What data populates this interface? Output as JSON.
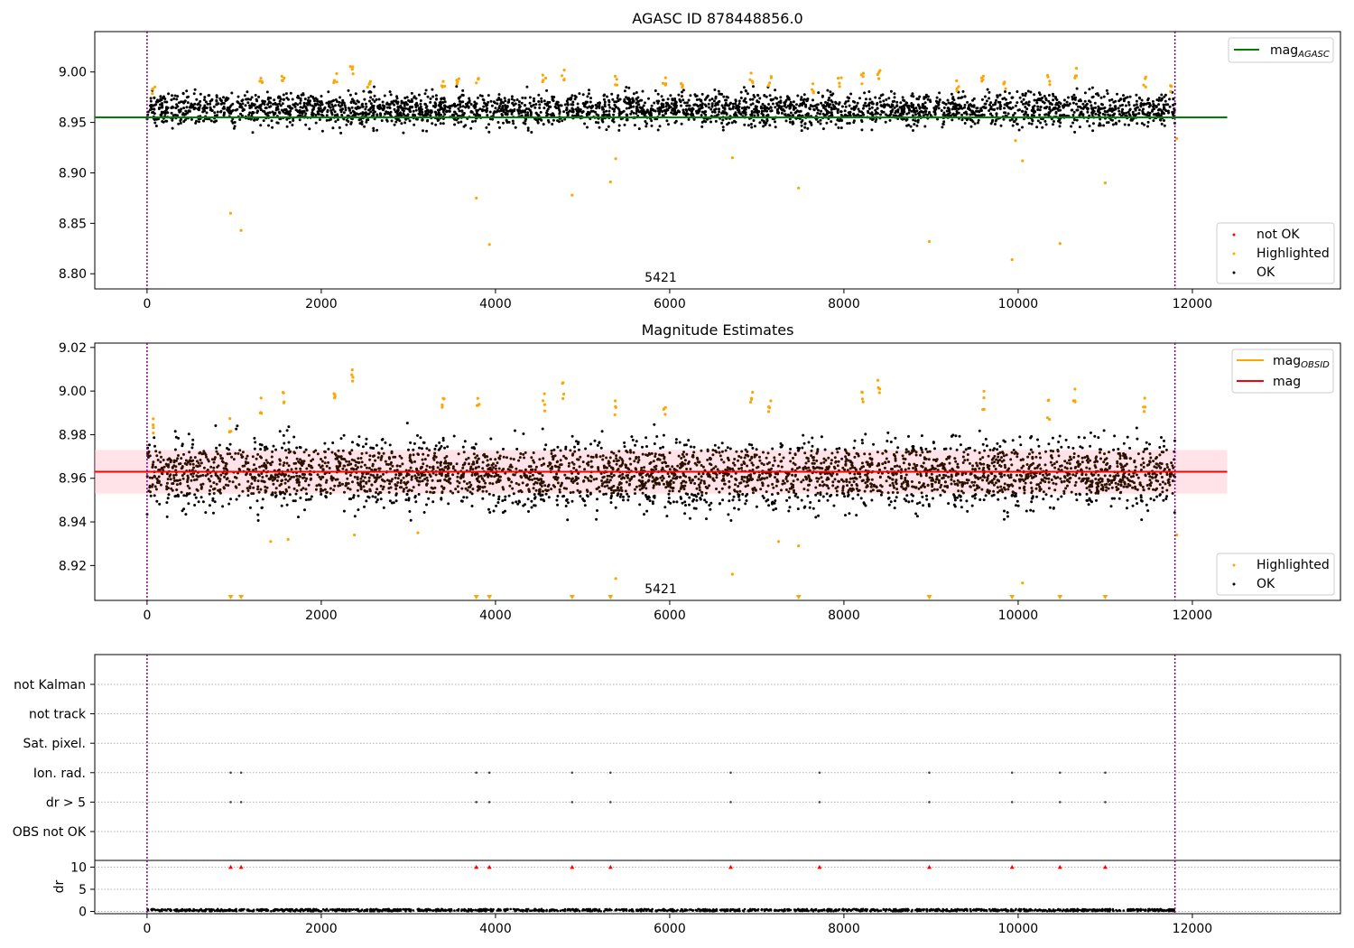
{
  "panel1": {
    "title": "AGASC ID 878448856.0",
    "center_label": "5421",
    "legend_top": [
      {
        "label": "mag",
        "sub": "AGASC",
        "color": "#008000"
      }
    ],
    "legend_bottom": [
      {
        "label": "not OK",
        "color": "#ff0000"
      },
      {
        "label": "Highlighted",
        "color": "#ffa500"
      },
      {
        "label": "OK",
        "color": "#000000"
      }
    ]
  },
  "panel2": {
    "title": "Magnitude Estimates",
    "center_label": "5421",
    "legend_top": [
      {
        "label": "mag",
        "sub": "OBSID",
        "color": "#ffa500"
      },
      {
        "label": "mag",
        "sub": "",
        "color": "#ff0000"
      }
    ],
    "legend_bottom": [
      {
        "label": "Highlighted",
        "color": "#ffa500"
      },
      {
        "label": "OK",
        "color": "#000000"
      }
    ]
  },
  "panel3": {
    "ylabel": "dr"
  },
  "chart_data": [
    {
      "type": "scatter",
      "title": "AGASC ID 878448856.0",
      "xlim": [
        -600,
        13700
      ],
      "ylim": [
        8.785,
        9.04
      ],
      "xticks": [
        0,
        2000,
        4000,
        6000,
        8000,
        10000,
        12000
      ],
      "yticks": [
        8.8,
        8.85,
        8.9,
        8.95,
        9.0
      ],
      "x_range_ok": [
        0,
        11800
      ],
      "ok_band": [
        8.94,
        8.99
      ],
      "mag_agasc": 8.955,
      "mag_agasc_x": [
        -600,
        12400
      ],
      "vlines": [
        0,
        11800
      ],
      "colors": {
        "ok": "#000000",
        "highlighted": "#ffa500",
        "not_ok": "#ff0000",
        "mag_agasc": "#008000",
        "vline": "#800080"
      },
      "highlighted_outliers": [
        [
          960,
          8.86
        ],
        [
          1080,
          8.843
        ],
        [
          3780,
          8.875
        ],
        [
          3930,
          8.829
        ],
        [
          4880,
          8.878
        ],
        [
          5320,
          8.891
        ],
        [
          5380,
          8.914
        ],
        [
          6720,
          8.915
        ],
        [
          7480,
          8.885
        ],
        [
          8980,
          8.832
        ],
        [
          9930,
          8.814
        ],
        [
          10050,
          8.912
        ],
        [
          10480,
          8.83
        ],
        [
          11000,
          8.89
        ],
        [
          9970,
          8.932
        ],
        [
          11820,
          8.934
        ]
      ],
      "highlighted_clusters": [
        [
          80,
          8.99
        ],
        [
          1310,
          8.995
        ],
        [
          1560,
          8.998
        ],
        [
          2160,
          9.0
        ],
        [
          2350,
          9.01
        ],
        [
          2550,
          8.993
        ],
        [
          3400,
          8.997
        ],
        [
          3570,
          8.995
        ],
        [
          3800,
          8.996
        ],
        [
          4560,
          9.0
        ],
        [
          4780,
          9.003
        ],
        [
          5380,
          8.997
        ],
        [
          5940,
          8.995
        ],
        [
          6150,
          8.99
        ],
        [
          6940,
          9.0
        ],
        [
          7150,
          8.996
        ],
        [
          7650,
          8.99
        ],
        [
          7950,
          8.995
        ],
        [
          8220,
          9.0
        ],
        [
          8400,
          9.005
        ],
        [
          9300,
          8.993
        ],
        [
          9600,
          9.0
        ],
        [
          9850,
          8.995
        ],
        [
          10350,
          8.998
        ],
        [
          10650,
          9.004
        ],
        [
          11450,
          8.995
        ],
        [
          11750,
          8.99
        ]
      ]
    },
    {
      "type": "scatter",
      "title": "Magnitude Estimates",
      "xlim": [
        -600,
        13700
      ],
      "ylim": [
        8.904,
        9.022
      ],
      "xticks": [
        0,
        2000,
        4000,
        6000,
        8000,
        10000,
        12000
      ],
      "yticks": [
        8.92,
        8.94,
        8.96,
        8.98,
        9.0,
        9.02
      ],
      "mag": 8.963,
      "mag_band": [
        8.953,
        8.973
      ],
      "mag_x": [
        -600,
        12400
      ],
      "x_range_ok": [
        0,
        11800
      ],
      "vlines": [
        0,
        11800
      ],
      "colors": {
        "ok": "#000000",
        "highlighted": "#ffa500",
        "mag": "#ff0000",
        "band": "#ffc0cb",
        "vline": "#800080"
      },
      "clipped_markers_x": [
        960,
        1080,
        3780,
        3930,
        4880,
        5320,
        7480,
        8980,
        9930,
        10480,
        11000
      ],
      "highlighted_points": [
        [
          80,
          8.99
        ],
        [
          1310,
          8.998
        ],
        [
          1560,
          9.0
        ],
        [
          2160,
          9.002
        ],
        [
          2350,
          9.011
        ],
        [
          3400,
          8.998
        ],
        [
          3800,
          8.997
        ],
        [
          4560,
          9.0
        ],
        [
          4780,
          9.004
        ],
        [
          5380,
          8.997
        ],
        [
          5940,
          8.996
        ],
        [
          6940,
          9.0
        ],
        [
          7150,
          9.0
        ],
        [
          8220,
          9.005
        ],
        [
          8400,
          9.006
        ],
        [
          9600,
          9.0
        ],
        [
          10350,
          8.997
        ],
        [
          10650,
          9.003
        ],
        [
          11450,
          8.997
        ],
        [
          960,
          8.99
        ],
        [
          1620,
          8.932
        ],
        [
          3110,
          8.935
        ],
        [
          5380,
          8.914
        ],
        [
          6720,
          8.916
        ],
        [
          7250,
          8.931
        ],
        [
          7480,
          8.929
        ],
        [
          10050,
          8.912
        ],
        [
          11820,
          8.934
        ],
        [
          1420,
          8.931
        ],
        [
          2380,
          8.934
        ]
      ]
    },
    {
      "type": "scatter",
      "xlim": [
        -600,
        13700
      ],
      "categories": [
        "not Kalman",
        "not track",
        "Sat. pixel.",
        "Ion. rad.",
        "dr > 5",
        "OBS not OK"
      ],
      "flag_points": {
        "Ion. rad.": [
          960,
          1080,
          3780,
          3930,
          4880,
          5320,
          6700,
          7720,
          8980,
          9930,
          10480,
          11000
        ],
        "dr > 5": [
          960,
          1080,
          3780,
          3930,
          4880,
          5320,
          6700,
          7720,
          8980,
          9930,
          10480,
          11000
        ]
      },
      "dr": {
        "ylim": [
          -0.5,
          11.5
        ],
        "yticks": [
          0,
          5,
          10
        ],
        "ylabel": "dr",
        "clipped_markers_x": [
          960,
          1080,
          3780,
          3930,
          4880,
          5320,
          6700,
          7720,
          8980,
          9930,
          10480,
          11000
        ],
        "typical": 0.3
      },
      "xticks": [
        0,
        2000,
        4000,
        6000,
        8000,
        10000,
        12000
      ],
      "vlines": [
        0,
        11800
      ]
    }
  ]
}
